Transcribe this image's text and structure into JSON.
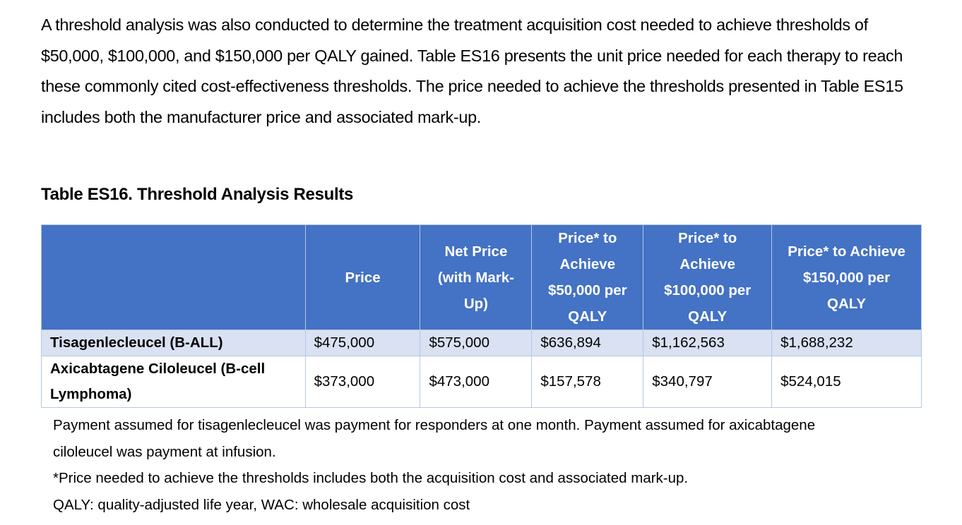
{
  "paragraph": "A threshold analysis was also conducted to determine the treatment acquisition cost needed to achieve thresholds of $50,000, $100,000, and $150,000 per QALY gained.  Table ES16 presents the unit price needed for each therapy to reach these commonly cited cost-effectiveness thresholds. The price needed to achieve the thresholds presented in Table ES15 includes both the manufacturer price and associated mark-up.",
  "table": {
    "title": "Table ES16.  Threshold Analysis Results",
    "header": [
      "",
      "Price",
      "Net Price (with Mark-Up)",
      "Price* to Achieve $50,000 per QALY",
      "Price* to Achieve $100,000 per QALY",
      "Price* to Achieve $150,000 per QALY"
    ],
    "rows": [
      [
        "Tisagenlecleucel (B-ALL)",
        "$475,000",
        "$575,000",
        "$636,894",
        "$1,162,563",
        "$1,688,232"
      ],
      [
        "Axicabtagene Ciloleucel (B-cell Lymphoma)",
        "$373,000",
        "$473,000",
        "$157,578",
        "$340,797",
        "$524,015"
      ]
    ],
    "notes": [
      "Payment assumed for tisagenlecleucel was payment for responders at one month.  Payment assumed for axicabtagene ciloleucel was payment at infusion.",
      "*Price needed to achieve the thresholds includes both the acquisition cost and associated mark-up.",
      "QALY: quality-adjusted life year, WAC: wholesale acquisition cost"
    ]
  }
}
